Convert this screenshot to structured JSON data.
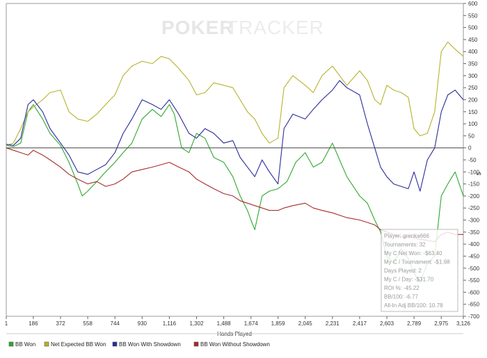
{
  "chart_data": {
    "type": "line",
    "title": "",
    "watermark": {
      "part1": "POKER",
      "part2": "TRACKER"
    },
    "xlabel": "Hands Played",
    "ylabel": "$",
    "xlim": [
      1,
      3126
    ],
    "ylim": [
      -700,
      600
    ],
    "x_ticks": [
      1,
      186,
      372,
      558,
      744,
      930,
      1116,
      1302,
      1488,
      1674,
      1859,
      2045,
      2231,
      2417,
      2603,
      2789,
      2975,
      3126
    ],
    "x_tick_labels": [
      "1",
      "186",
      "372",
      "558",
      "744",
      "930",
      "1,116",
      "1,302",
      "1,488",
      "1,674",
      "1,859",
      "2,045",
      "2,231",
      "2,417",
      "2,603",
      "2,789",
      "2,975",
      "3,126"
    ],
    "y_ticks": [
      600,
      550,
      500,
      450,
      400,
      350,
      300,
      250,
      200,
      150,
      100,
      50,
      0,
      -50,
      -100,
      -150,
      -200,
      -250,
      -300,
      -350,
      -400,
      -450,
      -500,
      -550,
      -600,
      -650,
      -700
    ],
    "grid": false,
    "zero_line": true,
    "series": [
      {
        "name": "BB Won",
        "color": "#2ea82e",
        "x": [
          1,
          50,
          100,
          150,
          186,
          250,
          300,
          372,
          430,
          490,
          520,
          558,
          620,
          680,
          744,
          800,
          860,
          930,
          1000,
          1060,
          1116,
          1150,
          1200,
          1250,
          1302,
          1360,
          1420,
          1488,
          1550,
          1600,
          1650,
          1674,
          1700,
          1750,
          1800,
          1859,
          1920,
          1980,
          2045,
          2100,
          2160,
          2231,
          2280,
          2330,
          2417,
          2470,
          2520,
          2560,
          2603,
          2650,
          2700,
          2750,
          2789,
          2830,
          2880,
          2930,
          2975,
          3020,
          3070,
          3126
        ],
        "y": [
          10,
          5,
          20,
          150,
          180,
          120,
          60,
          10,
          -60,
          -150,
          -200,
          -180,
          -140,
          -100,
          -60,
          -20,
          20,
          120,
          160,
          130,
          180,
          140,
          0,
          -20,
          60,
          40,
          -40,
          -60,
          -120,
          -200,
          -260,
          -300,
          -340,
          -200,
          -180,
          -170,
          -140,
          -60,
          -20,
          -80,
          -60,
          20,
          -50,
          -120,
          -200,
          -230,
          -300,
          -350,
          -450,
          -480,
          -420,
          -460,
          -520,
          -560,
          -480,
          -450,
          -200,
          -150,
          -100,
          -200
        ]
      },
      {
        "name": "Net Expected BB Won",
        "color": "#b7b22e",
        "x": [
          1,
          50,
          100,
          150,
          186,
          250,
          300,
          372,
          430,
          490,
          558,
          620,
          680,
          744,
          800,
          860,
          930,
          1000,
          1060,
          1116,
          1180,
          1250,
          1302,
          1360,
          1420,
          1488,
          1550,
          1600,
          1650,
          1700,
          1750,
          1800,
          1859,
          1900,
          1960,
          2045,
          2100,
          2160,
          2231,
          2280,
          2330,
          2417,
          2470,
          2520,
          2560,
          2603,
          2650,
          2700,
          2750,
          2789,
          2830,
          2880,
          2930,
          2975,
          3020,
          3070,
          3126
        ],
        "y": [
          10,
          20,
          80,
          150,
          170,
          200,
          230,
          240,
          150,
          120,
          110,
          140,
          180,
          220,
          300,
          340,
          360,
          350,
          380,
          370,
          330,
          280,
          220,
          230,
          270,
          260,
          250,
          200,
          150,
          120,
          60,
          20,
          40,
          250,
          300,
          260,
          230,
          300,
          340,
          300,
          260,
          320,
          280,
          200,
          180,
          260,
          240,
          230,
          210,
          80,
          50,
          60,
          150,
          400,
          440,
          410,
          380
        ]
      },
      {
        "name": "BB Won With Showdown",
        "color": "#2a2a9a",
        "x": [
          1,
          50,
          100,
          150,
          186,
          250,
          300,
          372,
          430,
          490,
          558,
          620,
          680,
          744,
          800,
          860,
          930,
          1000,
          1060,
          1116,
          1180,
          1250,
          1302,
          1360,
          1420,
          1488,
          1550,
          1600,
          1650,
          1700,
          1750,
          1800,
          1859,
          1900,
          1960,
          2045,
          2100,
          2160,
          2231,
          2280,
          2330,
          2417,
          2470,
          2520,
          2560,
          2603,
          2650,
          2700,
          2750,
          2789,
          2830,
          2880,
          2930,
          2975,
          3020,
          3070,
          3126
        ],
        "y": [
          15,
          10,
          40,
          180,
          200,
          150,
          80,
          20,
          -30,
          -100,
          -110,
          -90,
          -70,
          -20,
          60,
          120,
          200,
          180,
          160,
          200,
          140,
          60,
          40,
          80,
          60,
          20,
          30,
          -40,
          -80,
          -120,
          -50,
          -100,
          -150,
          80,
          140,
          120,
          160,
          200,
          240,
          280,
          250,
          220,
          100,
          0,
          -80,
          -120,
          -150,
          -160,
          -170,
          -100,
          -180,
          -50,
          0,
          150,
          220,
          240,
          200
        ]
      },
      {
        "name": "BB Won Without Showdown",
        "color": "#a82a2a",
        "x": [
          1,
          50,
          100,
          150,
          186,
          250,
          300,
          372,
          430,
          490,
          558,
          620,
          680,
          744,
          800,
          860,
          930,
          1000,
          1060,
          1116,
          1180,
          1250,
          1302,
          1360,
          1420,
          1488,
          1550,
          1600,
          1650,
          1700,
          1750,
          1800,
          1859,
          1900,
          1960,
          2045,
          2100,
          2160,
          2231,
          2280,
          2330,
          2417,
          2470,
          2520,
          2560,
          2603,
          2650,
          2700,
          2750,
          2789,
          2830,
          2880,
          2930,
          2975,
          3020,
          3070,
          3126
        ],
        "y": [
          0,
          -10,
          -20,
          -30,
          -10,
          -30,
          -50,
          -80,
          -110,
          -130,
          -150,
          -140,
          -160,
          -150,
          -130,
          -100,
          -90,
          -80,
          -70,
          -60,
          -80,
          -100,
          -130,
          -150,
          -170,
          -190,
          -200,
          -220,
          -230,
          -240,
          -250,
          -260,
          -260,
          -250,
          -240,
          -230,
          -250,
          -260,
          -270,
          -280,
          -290,
          -300,
          -310,
          -320,
          -340,
          -350,
          -360,
          -370,
          -370,
          -375,
          -380,
          -385,
          -390,
          -360,
          -350,
          -360,
          -360
        ]
      }
    ],
    "tooltip": {
      "lines": [
        "Player: grenka666",
        "Tournaments: 32",
        "My C Net Won: -$63.40",
        "My C / Tournament: -$1.98",
        "Days Played: 2",
        "My C / Day: -$31.70",
        "ROI %: -45.22",
        "BB/100: -6.77",
        "All-In Adj BB/100: 10.78"
      ]
    },
    "legend": [
      {
        "label": "BB Won",
        "color": "#2ea82e"
      },
      {
        "label": "Net Expected BB Won",
        "color": "#b7b22e"
      },
      {
        "label": "BB Won With Showdown",
        "color": "#2a2a9a"
      },
      {
        "label": "BB Won Without Showdown",
        "color": "#a82a2a"
      }
    ]
  }
}
